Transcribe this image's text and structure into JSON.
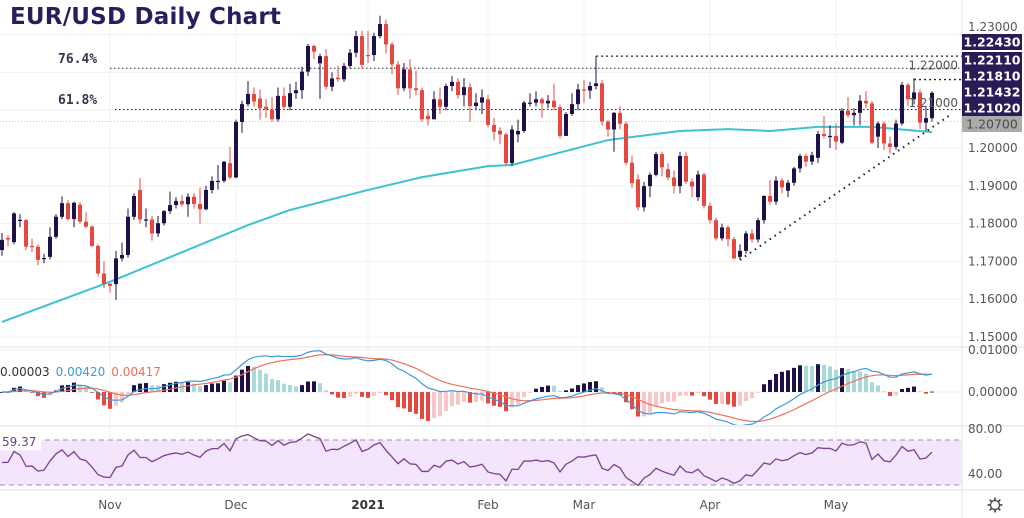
{
  "chart_data": {
    "type": "candlestick",
    "title": "EUR/USD Daily Chart",
    "colors": {
      "up": "#1f1147",
      "down": "#e5483f",
      "ma": "#3cc3cf",
      "macd": "#3b9ad9",
      "signal": "#ef6f5c",
      "rsi": "#7d3f92",
      "tag_bg": "#2a1a57",
      "tag_grey": "#ababab"
    },
    "candles": [
      [
        1.173,
        1.1775,
        1.1715,
        1.1757
      ],
      [
        1.1762,
        1.177,
        1.174,
        1.1758
      ],
      [
        1.1751,
        1.183,
        1.1745,
        1.1827
      ],
      [
        1.1809,
        1.1825,
        1.179,
        1.181
      ],
      [
        1.1809,
        1.1812,
        1.173,
        1.1739
      ],
      [
        1.1741,
        1.176,
        1.1725,
        1.174
      ],
      [
        1.1739,
        1.1745,
        1.169,
        1.1704
      ],
      [
        1.1706,
        1.172,
        1.1695,
        1.1709
      ],
      [
        1.1712,
        1.179,
        1.1705,
        1.1765
      ],
      [
        1.1765,
        1.1825,
        1.176,
        1.1818
      ],
      [
        1.1818,
        1.1872,
        1.1812,
        1.1854
      ],
      [
        1.1854,
        1.1862,
        1.1808,
        1.1812
      ],
      [
        1.1812,
        1.1858,
        1.179,
        1.1855
      ],
      [
        1.185,
        1.1857,
        1.18,
        1.1805
      ],
      [
        1.1805,
        1.183,
        1.1788,
        1.1792
      ],
      [
        1.1792,
        1.1795,
        1.1738,
        1.1741
      ],
      [
        1.1741,
        1.1745,
        1.166,
        1.1668
      ],
      [
        1.1668,
        1.17,
        1.163,
        1.1641
      ],
      [
        1.1641,
        1.1642,
        1.1617,
        1.1635
      ],
      [
        1.164,
        1.1728,
        1.1598,
        1.1708
      ],
      [
        1.1708,
        1.175,
        1.17,
        1.1717
      ],
      [
        1.1717,
        1.184,
        1.171,
        1.1818
      ],
      [
        1.1818,
        1.188,
        1.181,
        1.1873
      ],
      [
        1.1889,
        1.192,
        1.18,
        1.1811
      ],
      [
        1.1811,
        1.184,
        1.179,
        1.1811
      ],
      [
        1.1811,
        1.182,
        1.1755,
        1.1774
      ],
      [
        1.1774,
        1.182,
        1.1765,
        1.1801
      ],
      [
        1.1801,
        1.1836,
        1.1795,
        1.1833
      ],
      [
        1.1833,
        1.1885,
        1.1825,
        1.1849
      ],
      [
        1.1849,
        1.187,
        1.184,
        1.186
      ],
      [
        1.186,
        1.1875,
        1.1845,
        1.1851
      ],
      [
        1.1851,
        1.188,
        1.1818,
        1.1871
      ],
      [
        1.1871,
        1.188,
        1.184,
        1.1852
      ],
      [
        1.1852,
        1.1895,
        1.18,
        1.1838
      ],
      [
        1.1838,
        1.19,
        1.1835,
        1.1889
      ],
      [
        1.1889,
        1.1925,
        1.188,
        1.1913
      ],
      [
        1.1913,
        1.1955,
        1.189,
        1.1913
      ],
      [
        1.1913,
        1.1965,
        1.1908,
        1.1964
      ],
      [
        1.196,
        1.2003,
        1.1918,
        1.1922
      ],
      [
        1.1922,
        1.2075,
        1.192,
        1.2069
      ],
      [
        1.2069,
        1.2125,
        1.204,
        1.2116
      ],
      [
        1.2116,
        1.2177,
        1.211,
        1.2143
      ],
      [
        1.2143,
        1.216,
        1.211,
        1.2123
      ],
      [
        1.2131,
        1.2155,
        1.2075,
        1.2105
      ],
      [
        1.2109,
        1.213,
        1.208,
        1.2103
      ],
      [
        1.2102,
        1.2135,
        1.207,
        1.2076
      ],
      [
        1.2076,
        1.216,
        1.207,
        1.2138
      ],
      [
        1.2138,
        1.216,
        1.21,
        1.2109
      ],
      [
        1.2109,
        1.217,
        1.21,
        1.2145
      ],
      [
        1.2145,
        1.2175,
        1.213,
        1.2153
      ],
      [
        1.2153,
        1.2215,
        1.213,
        1.2202
      ],
      [
        1.2202,
        1.2275,
        1.219,
        1.227
      ],
      [
        1.227,
        1.2273,
        1.2235,
        1.2255
      ],
      [
        1.2224,
        1.225,
        1.213,
        1.2243
      ],
      [
        1.2243,
        1.2262,
        1.2155,
        1.2162
      ],
      [
        1.2162,
        1.22,
        1.215,
        1.2184
      ],
      [
        1.2186,
        1.2218,
        1.2175,
        1.2182
      ],
      [
        1.2182,
        1.2225,
        1.2175,
        1.2217
      ],
      [
        1.2217,
        1.2262,
        1.221,
        1.2252
      ],
      [
        1.2252,
        1.231,
        1.224,
        1.2296
      ],
      [
        1.2296,
        1.231,
        1.221,
        1.222
      ],
      [
        1.2246,
        1.231,
        1.2225,
        1.2244
      ],
      [
        1.2246,
        1.2305,
        1.223,
        1.2296
      ],
      [
        1.2296,
        1.235,
        1.229,
        1.2328
      ],
      [
        1.2328,
        1.234,
        1.225,
        1.2274
      ],
      [
        1.2274,
        1.228,
        1.2195,
        1.2221
      ],
      [
        1.2221,
        1.223,
        1.214,
        1.2158
      ],
      [
        1.2158,
        1.2225,
        1.215,
        1.2208
      ],
      [
        1.2208,
        1.2235,
        1.213,
        1.2158
      ],
      [
        1.2158,
        1.2205,
        1.214,
        1.2153
      ],
      [
        1.2153,
        1.216,
        1.207,
        1.2076
      ],
      [
        1.2085,
        1.21,
        1.206,
        1.2076
      ],
      [
        1.2076,
        1.215,
        1.2076,
        1.2129
      ],
      [
        1.2129,
        1.216,
        1.209,
        1.2109
      ],
      [
        1.2109,
        1.217,
        1.21,
        1.2164
      ],
      [
        1.2164,
        1.219,
        1.215,
        1.2175
      ],
      [
        1.2175,
        1.2185,
        1.213,
        1.214
      ],
      [
        1.214,
        1.2185,
        1.211,
        1.2161
      ],
      [
        1.2161,
        1.2172,
        1.207,
        1.2111
      ],
      [
        1.2111,
        1.2145,
        1.21,
        1.212
      ],
      [
        1.212,
        1.2155,
        1.209,
        1.2134
      ],
      [
        1.2129,
        1.214,
        1.2055,
        1.2061
      ],
      [
        1.2061,
        1.208,
        1.202,
        1.2043
      ],
      [
        1.2046,
        1.2055,
        1.201,
        1.2036
      ],
      [
        1.2036,
        1.204,
        1.1955,
        1.196
      ],
      [
        1.196,
        1.206,
        1.1952,
        1.2049
      ],
      [
        1.2036,
        1.2075,
        1.2015,
        1.2045
      ],
      [
        1.2045,
        1.2125,
        1.204,
        1.212
      ],
      [
        1.2118,
        1.2145,
        1.211,
        1.212
      ],
      [
        1.212,
        1.215,
        1.211,
        1.2129
      ],
      [
        1.2129,
        1.2135,
        1.208,
        1.2118
      ],
      [
        1.2118,
        1.214,
        1.2105,
        1.2125
      ],
      [
        1.2125,
        1.217,
        1.21,
        1.2108
      ],
      [
        1.2108,
        1.2115,
        1.2025,
        1.2032
      ],
      [
        1.2032,
        1.2095,
        1.2032,
        1.209
      ],
      [
        1.209,
        1.2145,
        1.2085,
        1.2116
      ],
      [
        1.2116,
        1.217,
        1.21,
        1.2155
      ],
      [
        1.2155,
        1.218,
        1.212,
        1.2152
      ],
      [
        1.2152,
        1.2175,
        1.213,
        1.2164
      ],
      [
        1.2164,
        1.2243,
        1.2155,
        1.2171
      ],
      [
        1.2171,
        1.218,
        1.206,
        1.207
      ],
      [
        1.207,
        1.2075,
        1.203,
        1.2049
      ],
      [
        1.2049,
        1.2095,
        1.199,
        1.2093
      ],
      [
        1.2093,
        1.211,
        1.205,
        1.2064
      ],
      [
        1.2064,
        1.207,
        1.1955,
        1.1961
      ],
      [
        1.1961,
        1.198,
        1.1895,
        1.1907
      ],
      [
        1.1917,
        1.193,
        1.1835,
        1.1843
      ],
      [
        1.1843,
        1.191,
        1.1832,
        1.1899
      ],
      [
        1.1899,
        1.1935,
        1.187,
        1.1929
      ],
      [
        1.1929,
        1.199,
        1.1925,
        1.1984
      ],
      [
        1.1984,
        1.199,
        1.1925,
        1.1949
      ],
      [
        1.1944,
        1.196,
        1.1915,
        1.1922
      ],
      [
        1.1922,
        1.194,
        1.188,
        1.1899
      ],
      [
        1.1899,
        1.199,
        1.188,
        1.1979
      ],
      [
        1.1979,
        1.199,
        1.1905,
        1.1911
      ],
      [
        1.1911,
        1.192,
        1.187,
        1.1898
      ],
      [
        1.187,
        1.194,
        1.186,
        1.193
      ],
      [
        1.193,
        1.1935,
        1.184,
        1.1847
      ],
      [
        1.1847,
        1.1855,
        1.18,
        1.1809
      ],
      [
        1.1809,
        1.1815,
        1.1755,
        1.1761
      ],
      [
        1.1761,
        1.18,
        1.1755,
        1.179
      ],
      [
        1.179,
        1.1795,
        1.174,
        1.1759
      ],
      [
        1.1759,
        1.1765,
        1.1705,
        1.1708
      ],
      [
        1.1712,
        1.1745,
        1.1704,
        1.1728
      ],
      [
        1.1728,
        1.178,
        1.172,
        1.1774
      ],
      [
        1.1774,
        1.1785,
        1.175,
        1.1758
      ],
      [
        1.1758,
        1.1815,
        1.175,
        1.1809
      ],
      [
        1.1809,
        1.1875,
        1.18,
        1.1873
      ],
      [
        1.1873,
        1.1915,
        1.185,
        1.1858
      ],
      [
        1.1858,
        1.1925,
        1.185,
        1.1914
      ],
      [
        1.1914,
        1.192,
        1.188,
        1.1896
      ],
      [
        1.1887,
        1.1915,
        1.187,
        1.1908
      ],
      [
        1.1908,
        1.195,
        1.19,
        1.1946
      ],
      [
        1.1946,
        1.1985,
        1.1935,
        1.1979
      ],
      [
        1.1979,
        1.1985,
        1.195,
        1.1964
      ],
      [
        1.1964,
        1.199,
        1.1955,
        1.1981
      ],
      [
        1.1974,
        1.2045,
        1.196,
        1.2037
      ],
      [
        1.2037,
        1.2085,
        1.2025,
        1.2032
      ],
      [
        1.2032,
        1.206,
        1.2,
        1.2032
      ],
      [
        1.2032,
        1.2065,
        1.1995,
        1.2017
      ],
      [
        1.2014,
        1.2105,
        1.201,
        1.2099
      ],
      [
        1.2099,
        1.2135,
        1.208,
        1.2087
      ],
      [
        1.2087,
        1.2105,
        1.206,
        1.2093
      ],
      [
        1.2093,
        1.214,
        1.206,
        1.2125
      ],
      [
        1.2125,
        1.215,
        1.2105,
        1.2118
      ],
      [
        1.2118,
        1.2125,
        1.201,
        1.2014
      ],
      [
        1.203,
        1.207,
        1.2,
        1.2065
      ],
      [
        1.2065,
        1.207,
        1.1995,
        1.2012
      ],
      [
        1.2012,
        1.203,
        1.1985,
        1.2003
      ],
      [
        1.2003,
        1.2075,
        1.1995,
        1.2065
      ],
      [
        1.2065,
        1.2175,
        1.206,
        1.2167
      ],
      [
        1.2167,
        1.2172,
        1.211,
        1.2129
      ],
      [
        1.2129,
        1.2185,
        1.2115,
        1.2147
      ],
      [
        1.2147,
        1.2155,
        1.205,
        1.2067
      ],
      [
        1.2067,
        1.211,
        1.2045,
        1.2079
      ],
      [
        1.2079,
        1.215,
        1.207,
        1.2146
      ]
    ],
    "moving_average": [
      [
        0,
        1.154
      ],
      [
        18,
        1.1646
      ],
      [
        41,
        1.1796
      ],
      [
        48,
        1.1836
      ],
      [
        61,
        1.1889
      ],
      [
        70,
        1.1923
      ],
      [
        81,
        1.1952
      ],
      [
        85,
        1.1955
      ],
      [
        101,
        1.2021
      ],
      [
        113,
        1.2045
      ],
      [
        121,
        1.205
      ],
      [
        128,
        1.2045
      ],
      [
        136,
        1.2056
      ],
      [
        145,
        1.2056
      ],
      [
        155,
        1.2042
      ]
    ],
    "trendline": [
      [
        123,
        1.1704
      ],
      [
        158,
        1.2087
      ]
    ],
    "fib_levels": [
      {
        "label": "76.4%",
        "price": 1.2211
      },
      {
        "label": "61.8%",
        "price": 1.2102
      }
    ],
    "resistance_levels": [
      {
        "price": 1.2243,
        "from_index": 99
      },
      {
        "price": 1.2181,
        "from_index": 152
      }
    ],
    "price_tags": [
      {
        "label": "1.22430",
        "price": 1.2243,
        "style": "dark"
      },
      {
        "label": "1.22110",
        "price": 1.2211,
        "style": "dark"
      },
      {
        "label": "1.21810",
        "price": 1.2181,
        "style": "dark"
      },
      {
        "label": "1.21432",
        "price": 1.21432,
        "style": "dark"
      },
      {
        "label": "1.21020",
        "price": 1.2102,
        "style": "dark"
      },
      {
        "label": "1.20700",
        "price": 1.207,
        "style": "grey"
      }
    ],
    "price_axis": {
      "range": [
        1.145,
        1.235
      ],
      "ticks": [
        "1.23000",
        "1.22000",
        "1.21000",
        "1.20000",
        "1.19000",
        "1.18000",
        "1.17000",
        "1.16000",
        "1.15000"
      ]
    },
    "x_axis": [
      {
        "label": "Nov",
        "index": 18
      },
      {
        "label": "Dec",
        "index": 39
      },
      {
        "label": "2021",
        "index": 61,
        "bold": true
      },
      {
        "label": "Feb",
        "index": 81
      },
      {
        "label": "Mar",
        "index": 97
      },
      {
        "label": "Apr",
        "index": 118
      },
      {
        "label": "May",
        "index": 139
      }
    ],
    "macd": {
      "values_text": [
        "0.00003",
        "0.00420",
        "0.00417"
      ],
      "ticks": [
        "0.01000",
        "0.00000"
      ]
    },
    "rsi": {
      "value_text": "59.37",
      "ticks": [
        "80.00",
        "40.00"
      ],
      "bands": [
        70,
        30
      ]
    },
    "grid": true
  },
  "settings_icon": "gear-icon"
}
